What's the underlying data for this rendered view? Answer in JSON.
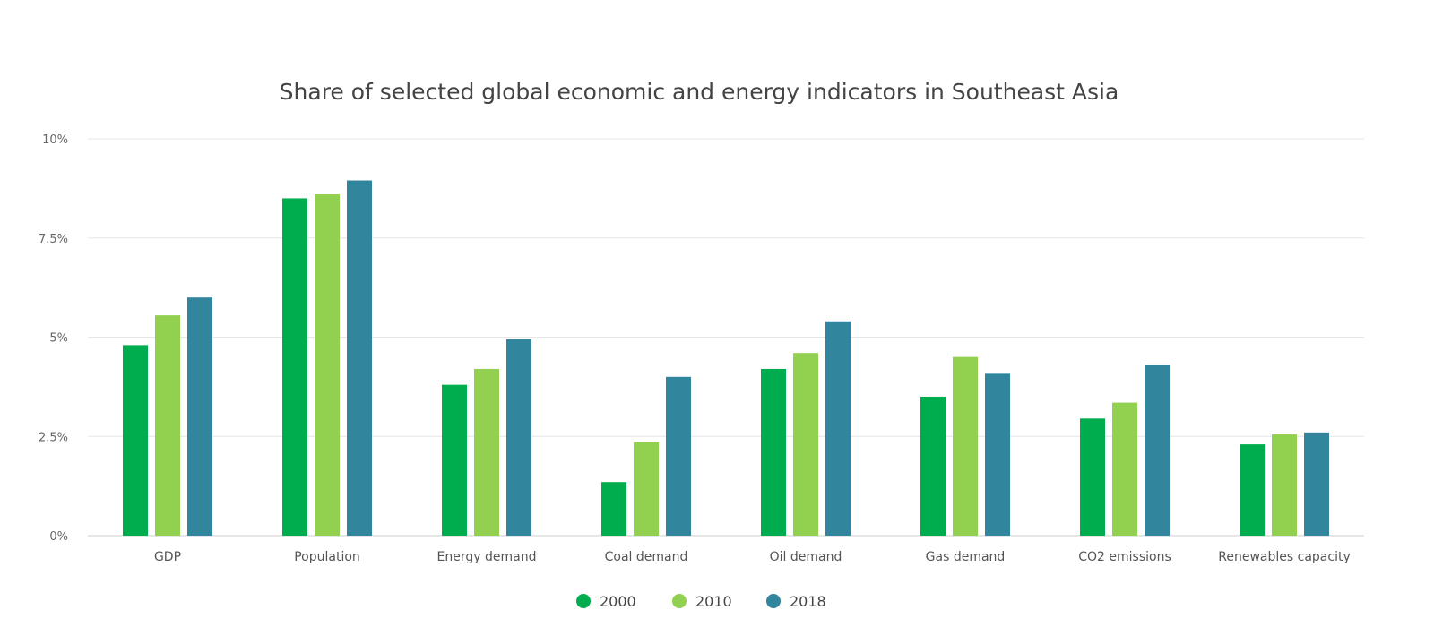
{
  "chart_data": {
    "type": "bar",
    "title": "Share of selected global economic and energy indicators in Southeast Asia",
    "xlabel": "",
    "ylabel": "",
    "ylim": [
      0,
      10
    ],
    "yticks": [
      0,
      2.5,
      5,
      7.5,
      10
    ],
    "ytick_labels": [
      "0%",
      "2.5%",
      "5%",
      "7.5%",
      "10%"
    ],
    "grid": true,
    "legend_position": "bottom",
    "categories": [
      "GDP",
      "Population",
      "Energy demand",
      "Coal demand",
      "Oil demand",
      "Gas demand",
      "CO2 emissions",
      "Renewables capacity"
    ],
    "series": [
      {
        "name": "2000",
        "color": "#00ad4e",
        "values": [
          4.8,
          8.5,
          3.8,
          1.35,
          4.2,
          3.5,
          2.95,
          2.3
        ]
      },
      {
        "name": "2010",
        "color": "#92d050",
        "values": [
          5.55,
          8.6,
          4.2,
          2.35,
          4.6,
          4.5,
          3.35,
          2.55
        ]
      },
      {
        "name": "2018",
        "color": "#31859c",
        "values": [
          6.0,
          8.95,
          4.95,
          4.0,
          5.4,
          4.1,
          4.3,
          2.6
        ]
      }
    ]
  }
}
